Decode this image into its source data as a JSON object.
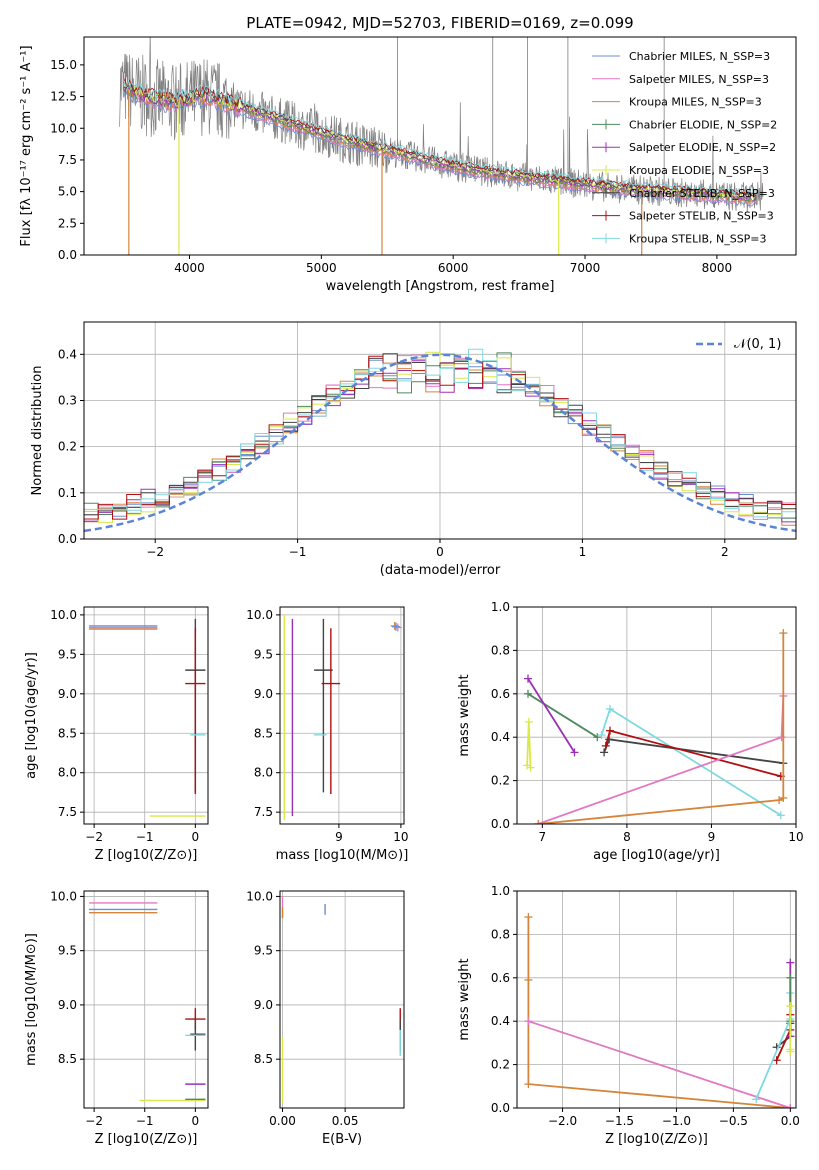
{
  "chart_data": [
    {
      "id": "spectrum",
      "type": "line",
      "title": "PLATE=0942, MJD=52703, FIBERID=0169, z=0.099",
      "xlabel": "wavelength [Angstrom, rest frame]",
      "ylabel": "Flux [fλ 10⁻¹⁷ erg cm⁻² s⁻¹ A⁻¹]",
      "xlim": [
        3200,
        8600
      ],
      "ylim": [
        0,
        17.2
      ],
      "xticks": [
        4000,
        5000,
        6000,
        7000,
        8000
      ],
      "yticks": [
        0.0,
        2.5,
        5.0,
        7.5,
        10.0,
        12.5,
        15.0
      ],
      "legend_position": "top-right",
      "series": [
        {
          "name": "Chabrier MILES, N_SSP=3",
          "color": "#6b8fd6"
        },
        {
          "name": "Salpeter MILES, N_SSP=3",
          "color": "#e377c2"
        },
        {
          "name": "Kroupa MILES, N_SSP=3",
          "color": "#d4853a"
        },
        {
          "name": "Chabrier ELODIE, N_SSP=2",
          "color": "#4e8a5c"
        },
        {
          "name": "Salpeter ELODIE, N_SSP=2",
          "color": "#9b30b8"
        },
        {
          "name": "Kroupa ELODIE, N_SSP=3",
          "color": "#dbe84a"
        },
        {
          "name": "Chabrier STELIB, N_SSP=3",
          "color": "#444444"
        },
        {
          "name": "Salpeter STELIB, N_SSP=3",
          "color": "#b01010"
        },
        {
          "name": "Kroupa STELIB, N_SSP=3",
          "color": "#7fd9e0"
        }
      ],
      "continuum": {
        "x": [
          3500,
          3700,
          3900,
          4100,
          4400,
          4700,
          5000,
          5300,
          5600,
          6000,
          6400,
          6800,
          7200,
          7600,
          8000,
          8300
        ],
        "y": [
          13.2,
          12.4,
          12.0,
          12.6,
          11.6,
          10.6,
          9.6,
          8.7,
          8.0,
          7.0,
          6.3,
          5.8,
          5.3,
          5.0,
          4.7,
          4.5
        ]
      }
    },
    {
      "id": "residuals",
      "type": "line",
      "xlabel": "(data-model)/error",
      "ylabel": "Normed distribution",
      "xlim": [
        -2.5,
        2.5
      ],
      "ylim": [
        0,
        0.47
      ],
      "xticks": [
        -2,
        -1,
        0,
        1,
        2
      ],
      "yticks": [
        0.0,
        0.1,
        0.2,
        0.3,
        0.4
      ],
      "legend": "𝒩(0, 1)",
      "legend_position": "top-right",
      "gauss_color": "#5b84d6"
    },
    {
      "id": "age_vs_Z",
      "type": "scatter",
      "xlabel": "Z [log10(Z/Z⊙)]",
      "ylabel": "age [log10(age/yr)]",
      "xlim": [
        -2.2,
        0.25
      ],
      "ylim": [
        7.35,
        10.1
      ],
      "xticks": [
        -2,
        -1,
        0
      ],
      "yticks": [
        7.5,
        8.0,
        8.5,
        9.0,
        9.5,
        10.0
      ],
      "points": [
        {
          "x": -2.05,
          "y": 9.84,
          "xerr": [
            0.05,
            1.3
          ],
          "color": "#e377c2"
        },
        {
          "x": -2.05,
          "y": 9.82,
          "xerr": [
            0.05,
            1.3
          ],
          "color": "#d4853a"
        },
        {
          "x": -2.05,
          "y": 9.86,
          "xerr": [
            0.05,
            1.3
          ],
          "color": "#6b8fd6"
        },
        {
          "x": 0.0,
          "y": 9.3,
          "xerr": [
            0.2,
            0.2
          ],
          "yerr": [
            1.55,
            0.65
          ],
          "color": "#444444"
        },
        {
          "x": 0.0,
          "y": 9.13,
          "xerr": [
            0.2,
            0.2
          ],
          "yerr": [
            1.4,
            0.7
          ],
          "color": "#b01010"
        },
        {
          "x": 0.0,
          "y": 8.48,
          "xerr": [
            0.1,
            0.2
          ],
          "color": "#7fd9e0"
        },
        {
          "x": -0.5,
          "y": 7.45,
          "xerr": [
            0.4,
            0.7
          ],
          "color": "#dbe84a"
        }
      ]
    },
    {
      "id": "age_vs_mass",
      "type": "scatter",
      "xlabel": "mass [log10(M/M⊙)]",
      "ylabel": "",
      "xlim": [
        8.05,
        10.05
      ],
      "ylim": [
        7.35,
        10.1
      ],
      "xticks": [
        9,
        10
      ],
      "yticks": [
        7.5,
        8.0,
        8.5,
        9.0,
        9.5,
        10.0
      ],
      "points": [
        {
          "x": 8.75,
          "y": 9.3,
          "xerr": [
            0.15,
            0.15
          ],
          "yerr": [
            1.55,
            0.65
          ],
          "color": "#444444"
        },
        {
          "x": 8.87,
          "y": 9.13,
          "xerr": [
            0.15,
            0.15
          ],
          "yerr": [
            1.4,
            0.7
          ],
          "color": "#b01010"
        },
        {
          "x": 8.7,
          "y": 8.48,
          "xerr": [
            0.1,
            0.1
          ],
          "color": "#7fd9e0"
        },
        {
          "x": 8.12,
          "y": 8.7,
          "yerr": [
            1.3,
            1.3
          ],
          "color": "#dbe84a"
        },
        {
          "x": 8.25,
          "y": 8.7,
          "yerr": [
            1.25,
            1.25
          ],
          "color": "#9b30b8"
        },
        {
          "x": 9.9,
          "y": 9.86,
          "color": "#d4853a"
        },
        {
          "x": 9.95,
          "y": 9.84,
          "color": "#e377c2"
        },
        {
          "x": 9.92,
          "y": 9.85,
          "color": "#6b8fd6"
        }
      ]
    },
    {
      "id": "weight_vs_age",
      "type": "line",
      "xlabel": "age [log10(age/yr)]",
      "ylabel": "mass weight",
      "xlim": [
        6.7,
        10.0
      ],
      "ylim": [
        0,
        1.0
      ],
      "xticks": [
        7,
        8,
        9,
        10
      ],
      "yticks": [
        0.0,
        0.2,
        0.4,
        0.6,
        0.8,
        1.0
      ],
      "series": [
        {
          "name": "Chabrier ELODIE",
          "color": "#4e8a5c",
          "x": [
            6.83,
            7.65
          ],
          "y": [
            0.6,
            0.4
          ]
        },
        {
          "name": "Salpeter ELODIE",
          "color": "#9b30b8",
          "x": [
            6.83,
            7.38
          ],
          "y": [
            0.67,
            0.33
          ]
        },
        {
          "name": "Kroupa ELODIE",
          "color": "#dbe84a",
          "x": [
            6.82,
            6.84,
            6.86
          ],
          "y": [
            0.27,
            0.47,
            0.26
          ]
        },
        {
          "name": "Kroupa STELIB",
          "color": "#7fd9e0",
          "x": [
            7.7,
            7.8,
            9.82
          ],
          "y": [
            0.41,
            0.53,
            0.04
          ]
        },
        {
          "name": "Chabrier STELIB",
          "color": "#444444",
          "x": [
            7.73,
            7.79,
            9.85
          ],
          "y": [
            0.33,
            0.39,
            0.28
          ]
        },
        {
          "name": "Salpeter STELIB",
          "color": "#b01010",
          "x": [
            7.75,
            7.8,
            9.82
          ],
          "y": [
            0.36,
            0.43,
            0.22
          ]
        },
        {
          "name": "Salpeter MILES",
          "color": "#e377c2",
          "x": [
            6.95,
            9.83,
            9.85
          ],
          "y": [
            0.0,
            0.4,
            0.59
          ]
        },
        {
          "name": "Kroupa MILES",
          "color": "#d4853a",
          "x": [
            6.95,
            9.8,
            9.85,
            9.85
          ],
          "y": [
            0.0,
            0.11,
            0.12,
            0.88
          ]
        }
      ]
    },
    {
      "id": "mass_vs_Z",
      "type": "scatter",
      "xlabel": "Z [log10(Z/Z⊙)]",
      "ylabel": "mass [log10(M/M⊙)]",
      "xlim": [
        -2.2,
        0.25
      ],
      "ylim": [
        8.05,
        10.05
      ],
      "xticks": [
        -2,
        -1,
        0
      ],
      "yticks": [
        8.5,
        9.0,
        9.5,
        10.0
      ],
      "points": [
        {
          "x": -2.05,
          "y": 9.94,
          "xerr": [
            0.05,
            1.3
          ],
          "color": "#e377c2"
        },
        {
          "x": -2.05,
          "y": 9.85,
          "xerr": [
            0.05,
            1.3
          ],
          "color": "#d4853a"
        },
        {
          "x": -2.05,
          "y": 9.88,
          "xerr": [
            0.05,
            1.3
          ],
          "color": "#6b8fd6"
        },
        {
          "x": 0.0,
          "y": 8.87,
          "xerr": [
            0.2,
            0.2
          ],
          "yerr": [
            0.1,
            0.1
          ],
          "color": "#b01010"
        },
        {
          "x": 0.0,
          "y": 8.73,
          "xerr": [
            0.1,
            0.2
          ],
          "yerr": [
            0.15,
            0.15
          ],
          "color": "#444444"
        },
        {
          "x": 0.0,
          "y": 8.72,
          "xerr": [
            0.2,
            0.2
          ],
          "color": "#7fd9e0"
        },
        {
          "x": 0.0,
          "y": 8.27,
          "xerr": [
            0.2,
            0.2
          ],
          "color": "#9b30b8"
        },
        {
          "x": -0.5,
          "y": 8.12,
          "xerr": [
            0.6,
            0.7
          ],
          "color": "#dbe84a"
        },
        {
          "x": 0.0,
          "y": 8.13,
          "xerr": [
            0.2,
            0.2
          ],
          "color": "#4e8a5c"
        }
      ]
    },
    {
      "id": "mass_vs_ebv",
      "type": "scatter",
      "xlabel": "E(B-V)",
      "ylabel": "",
      "xlim": [
        -0.002,
        0.097
      ],
      "ylim": [
        8.05,
        10.05
      ],
      "xticks": [
        0.0,
        0.05
      ],
      "yticks": [
        8.5,
        9.0,
        9.5,
        10.0
      ],
      "points": [
        {
          "x": 0.0,
          "y": 9.9,
          "yerr": [
            0.1,
            0.1
          ],
          "color": "#e377c2"
        },
        {
          "x": 0.0,
          "y": 9.85,
          "yerr": [
            0.05,
            0.05
          ],
          "color": "#d4853a"
        },
        {
          "x": 0.034,
          "y": 9.88,
          "yerr": [
            0.05,
            0.05
          ],
          "color": "#6b8fd6"
        },
        {
          "x": 0.0,
          "y": 8.4,
          "yerr": [
            0.3,
            0.3
          ],
          "color": "#dbe84a"
        },
        {
          "x": 0.094,
          "y": 8.87,
          "yerr": [
            0.1,
            0.1
          ],
          "color": "#b01010"
        },
        {
          "x": 0.094,
          "y": 8.72,
          "yerr": [
            0.15,
            0.15
          ],
          "color": "#444444"
        },
        {
          "x": 0.094,
          "y": 8.65,
          "yerr": [
            0.12,
            0.12
          ],
          "color": "#7fd9e0"
        }
      ]
    },
    {
      "id": "weight_vs_Z",
      "type": "line",
      "xlabel": "Z [log10(Z/Z⊙)]",
      "ylabel": "mass weight",
      "xlim": [
        -2.4,
        0.05
      ],
      "ylim": [
        0,
        1.0
      ],
      "xticks": [
        -2.0,
        -1.5,
        -1.0,
        -0.5,
        0.0
      ],
      "yticks": [
        0.0,
        0.2,
        0.4,
        0.6,
        0.8,
        1.0
      ],
      "series": [
        {
          "name": "Kroupa MILES",
          "color": "#d4853a",
          "x": [
            -2.3,
            -2.3,
            -2.3,
            0.0
          ],
          "y": [
            0.88,
            0.59,
            0.11,
            0.0
          ]
        },
        {
          "name": "Salpeter MILES",
          "color": "#e377c2",
          "x": [
            -2.3,
            0.0
          ],
          "y": [
            0.4,
            0.0
          ]
        },
        {
          "name": "Chabrier STELIB",
          "color": "#444444",
          "x": [
            -0.12,
            0.0,
            0.0
          ],
          "y": [
            0.28,
            0.33,
            0.39
          ]
        },
        {
          "name": "Salpeter STELIB",
          "color": "#b01010",
          "x": [
            -0.12,
            0.0,
            0.0
          ],
          "y": [
            0.22,
            0.36,
            0.43
          ]
        },
        {
          "name": "Kroupa STELIB",
          "color": "#7fd9e0",
          "x": [
            -0.3,
            0.0,
            0.0
          ],
          "y": [
            0.04,
            0.41,
            0.53
          ]
        },
        {
          "name": "Salpeter ELODIE",
          "color": "#9b30b8",
          "x": [
            0.0,
            0.0
          ],
          "y": [
            0.67,
            0.33
          ]
        },
        {
          "name": "Chabrier ELODIE",
          "color": "#4e8a5c",
          "x": [
            0.0,
            0.0
          ],
          "y": [
            0.6,
            0.4
          ]
        },
        {
          "name": "Kroupa ELODIE",
          "color": "#dbe84a",
          "x": [
            0.0,
            0.0,
            0.0
          ],
          "y": [
            0.47,
            0.27,
            0.26
          ]
        }
      ]
    }
  ]
}
